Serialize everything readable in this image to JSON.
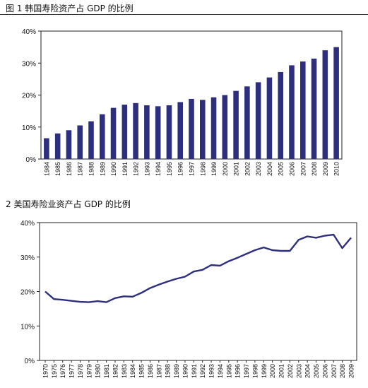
{
  "chart_data": [
    {
      "type": "bar",
      "title": "图 1 韩国寿险资产占 GDP 的比例",
      "xlabel": "",
      "ylabel": "",
      "ylim": [
        0,
        40
      ],
      "yticks": [
        "0%",
        "10%",
        "20%",
        "30%",
        "40%"
      ],
      "categories": [
        "1984",
        "1985",
        "1986",
        "1987",
        "1988",
        "1989",
        "1990",
        "1991",
        "1992",
        "1993",
        "1994",
        "1995",
        "1996",
        "1997",
        "1998",
        "1999",
        "2000",
        "2001",
        "2002",
        "2003",
        "2004",
        "2005",
        "2006",
        "2007",
        "2008",
        "2009",
        "2010"
      ],
      "values": [
        6.5,
        8,
        9,
        10.5,
        11.8,
        14,
        16,
        17,
        17.5,
        16.8,
        16.5,
        16.8,
        17.8,
        18.8,
        18.5,
        19.3,
        20,
        21.3,
        22.7,
        24,
        25.5,
        27.2,
        29.3,
        30.5,
        31.4,
        34,
        35
      ],
      "color": "#2e2e7e",
      "grid": false,
      "legend": false
    },
    {
      "type": "line",
      "title": "2 美国寿险业资产占 GDP 的比例",
      "xlabel": "",
      "ylabel": "",
      "ylim": [
        0,
        40
      ],
      "yticks": [
        "0%",
        "10%",
        "20%",
        "30%",
        "40%"
      ],
      "xticks": [
        "1970",
        "1975",
        "1976",
        "1977",
        "1978",
        "1979",
        "1980",
        "1981",
        "1982",
        "1983",
        "1984",
        "1985",
        "1986",
        "1987",
        "1988",
        "1989",
        "1990",
        "1991",
        "1992",
        "1993",
        "1994",
        "1995",
        "1996",
        "1997",
        "1998",
        "1999",
        "2000",
        "2001",
        "2002",
        "2003",
        "2004",
        "2005",
        "2006",
        "2007",
        "2008",
        "2009"
      ],
      "values": [
        20,
        17.8,
        17.6,
        17.3,
        17,
        16.9,
        17.2,
        16.9,
        18.1,
        18.6,
        18.5,
        19.6,
        21,
        22,
        22.9,
        23.7,
        24.3,
        25.8,
        26.3,
        27.7,
        27.5,
        28.8,
        29.8,
        30.9,
        32,
        32.8,
        32,
        31.8,
        31.8,
        35,
        36,
        35.6,
        36.2,
        36.5,
        32.6,
        35.6
      ],
      "color": "#2e2e7e",
      "grid": false,
      "legend": false
    }
  ]
}
